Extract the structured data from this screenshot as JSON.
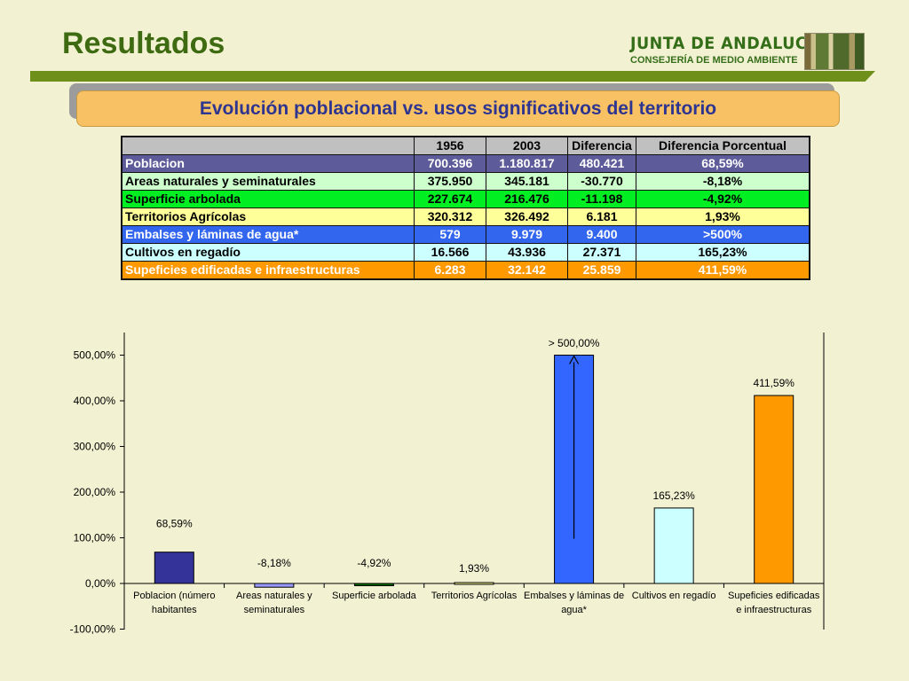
{
  "header": {
    "title": "Resultados",
    "logo_line1": "JUNTA DE ANDALUCIA",
    "logo_line2": "CONSEJERÍA DE MEDIO AMBIENTE"
  },
  "banner": {
    "text": "Evolución poblacional vs. usos significativos del territorio"
  },
  "table": {
    "columns": [
      "",
      "1956",
      "2003",
      "Diferencia",
      "Diferencia Porcentual"
    ],
    "rows": [
      {
        "label": "Poblacion",
        "c1956": "700.396",
        "c2003": "1.180.817",
        "diff": "480.421",
        "pct": "68,59%",
        "bg": "#5d5b99",
        "fg": "#ffffff"
      },
      {
        "label": "Areas naturales y seminaturales",
        "c1956": "375.950",
        "c2003": "345.181",
        "diff": "-30.770",
        "pct": "-8,18%",
        "bg": "#ccffcc",
        "fg": "#000000"
      },
      {
        "label": "Superficie arbolada",
        "c1956": "227.674",
        "c2003": "216.476",
        "diff": "-11.198",
        "pct": "-4,92%",
        "bg": "#00ee22",
        "fg": "#000000"
      },
      {
        "label": "Territorios Agrícolas",
        "c1956": "320.312",
        "c2003": "326.492",
        "diff": "6.181",
        "pct": "1,93%",
        "bg": "#ffff99",
        "fg": "#000000"
      },
      {
        "label": "Embalses y láminas de agua*",
        "c1956": "579",
        "c2003": "9.979",
        "diff": "9.400",
        "pct": ">500%",
        "bg": "#3366ee",
        "fg": "#ffffff"
      },
      {
        "label": "Cultivos en regadío",
        "c1956": "16.566",
        "c2003": "43.936",
        "diff": "27.371",
        "pct": "165,23%",
        "bg": "#ccffff",
        "fg": "#000000"
      },
      {
        "label": "Supeficies edificadas e infraestructuras",
        "c1956": "6.283",
        "c2003": "32.142",
        "diff": "25.859",
        "pct": "411,59%",
        "bg": "#ff9900",
        "fg": "#ffffff"
      }
    ]
  },
  "chart_data": {
    "type": "bar",
    "categories": [
      [
        "Poblacion (número",
        "habitantes"
      ],
      [
        "Areas naturales y",
        "seminaturales"
      ],
      [
        "Superficie arbolada"
      ],
      [
        "Territorios Agrícolas"
      ],
      [
        "Embalses y láminas de",
        "agua*"
      ],
      [
        "Cultivos en regadío"
      ],
      [
        "Supeficies edificadas",
        "e infraestructuras"
      ]
    ],
    "values": [
      68.59,
      -8.18,
      -4.92,
      1.93,
      500,
      165.23,
      411.59
    ],
    "data_labels": [
      "68,59%",
      "-8,18%",
      "-4,92%",
      "1,93%",
      "> 500,00%",
      "165,23%",
      "411,59%"
    ],
    "colors": [
      "#333399",
      "#9999ff",
      "#006600",
      "#ffff99",
      "#3366ff",
      "#ccffff",
      "#ff9900"
    ],
    "yticks": [
      "-100,00%",
      "0,00%",
      "100,00%",
      "200,00%",
      "300,00%",
      "400,00%",
      "500,00%"
    ],
    "ytick_values": [
      -100,
      0,
      100,
      200,
      300,
      400,
      500
    ],
    "ylim": [
      -100,
      540
    ],
    "arrow_on_category": 4,
    "grid": false,
    "title": "",
    "xlabel": "",
    "ylabel": ""
  }
}
